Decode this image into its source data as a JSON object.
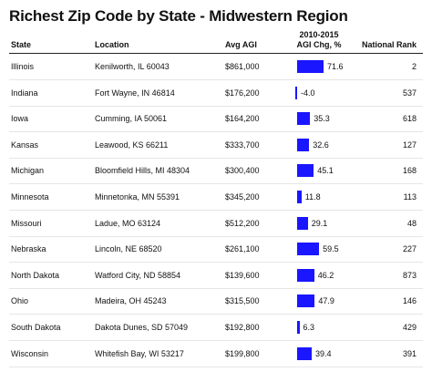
{
  "title": "Richest Zip Code by State - Midwestern Region",
  "headers": {
    "state": "State",
    "location": "Location",
    "avg_agi": "Avg AGI",
    "chg_line1": "2010-2015",
    "chg_line2": "AGI Chg, %",
    "rank": "National Rank"
  },
  "colors": {
    "bar": "#1a16ff"
  },
  "rows": [
    {
      "state": "Illinois",
      "location": "Kenilworth, IL 60043",
      "agi": "$861,000",
      "chg": 71.6,
      "chg_label": "71.6",
      "rank": "2"
    },
    {
      "state": "Indiana",
      "location": "Fort Wayne, IN 46814",
      "agi": "$176,200",
      "chg": -4.0,
      "chg_label": "-4.0",
      "rank": "537"
    },
    {
      "state": "Iowa",
      "location": "Cumming, IA 50061",
      "agi": "$164,200",
      "chg": 35.3,
      "chg_label": "35.3",
      "rank": "618"
    },
    {
      "state": "Kansas",
      "location": "Leawood, KS 66211",
      "agi": "$333,700",
      "chg": 32.6,
      "chg_label": "32.6",
      "rank": "127"
    },
    {
      "state": "Michigan",
      "location": "Bloomfield Hills, MI 48304",
      "agi": "$300,400",
      "chg": 45.1,
      "chg_label": "45.1",
      "rank": "168"
    },
    {
      "state": "Minnesota",
      "location": "Minnetonka, MN 55391",
      "agi": "$345,200",
      "chg": 11.8,
      "chg_label": "11.8",
      "rank": "113"
    },
    {
      "state": "Missouri",
      "location": "Ladue, MO 63124",
      "agi": "$512,200",
      "chg": 29.1,
      "chg_label": "29.1",
      "rank": "48"
    },
    {
      "state": "Nebraska",
      "location": "Lincoln, NE 68520",
      "agi": "$261,100",
      "chg": 59.5,
      "chg_label": "59.5",
      "rank": "227"
    },
    {
      "state": "North Dakota",
      "location": "Watford City, ND 58854",
      "agi": "$139,600",
      "chg": 46.2,
      "chg_label": "46.2",
      "rank": "873"
    },
    {
      "state": "Ohio",
      "location": "Madeira, OH 45243",
      "agi": "$315,500",
      "chg": 47.9,
      "chg_label": "47.9",
      "rank": "146"
    },
    {
      "state": "South Dakota",
      "location": "Dakota Dunes, SD 57049",
      "agi": "$192,800",
      "chg": 6.3,
      "chg_label": "6.3",
      "rank": "429"
    },
    {
      "state": "Wisconsin",
      "location": "Whitefish Bay, WI 53217",
      "agi": "$199,800",
      "chg": 39.4,
      "chg_label": "39.4",
      "rank": "391"
    }
  ]
}
